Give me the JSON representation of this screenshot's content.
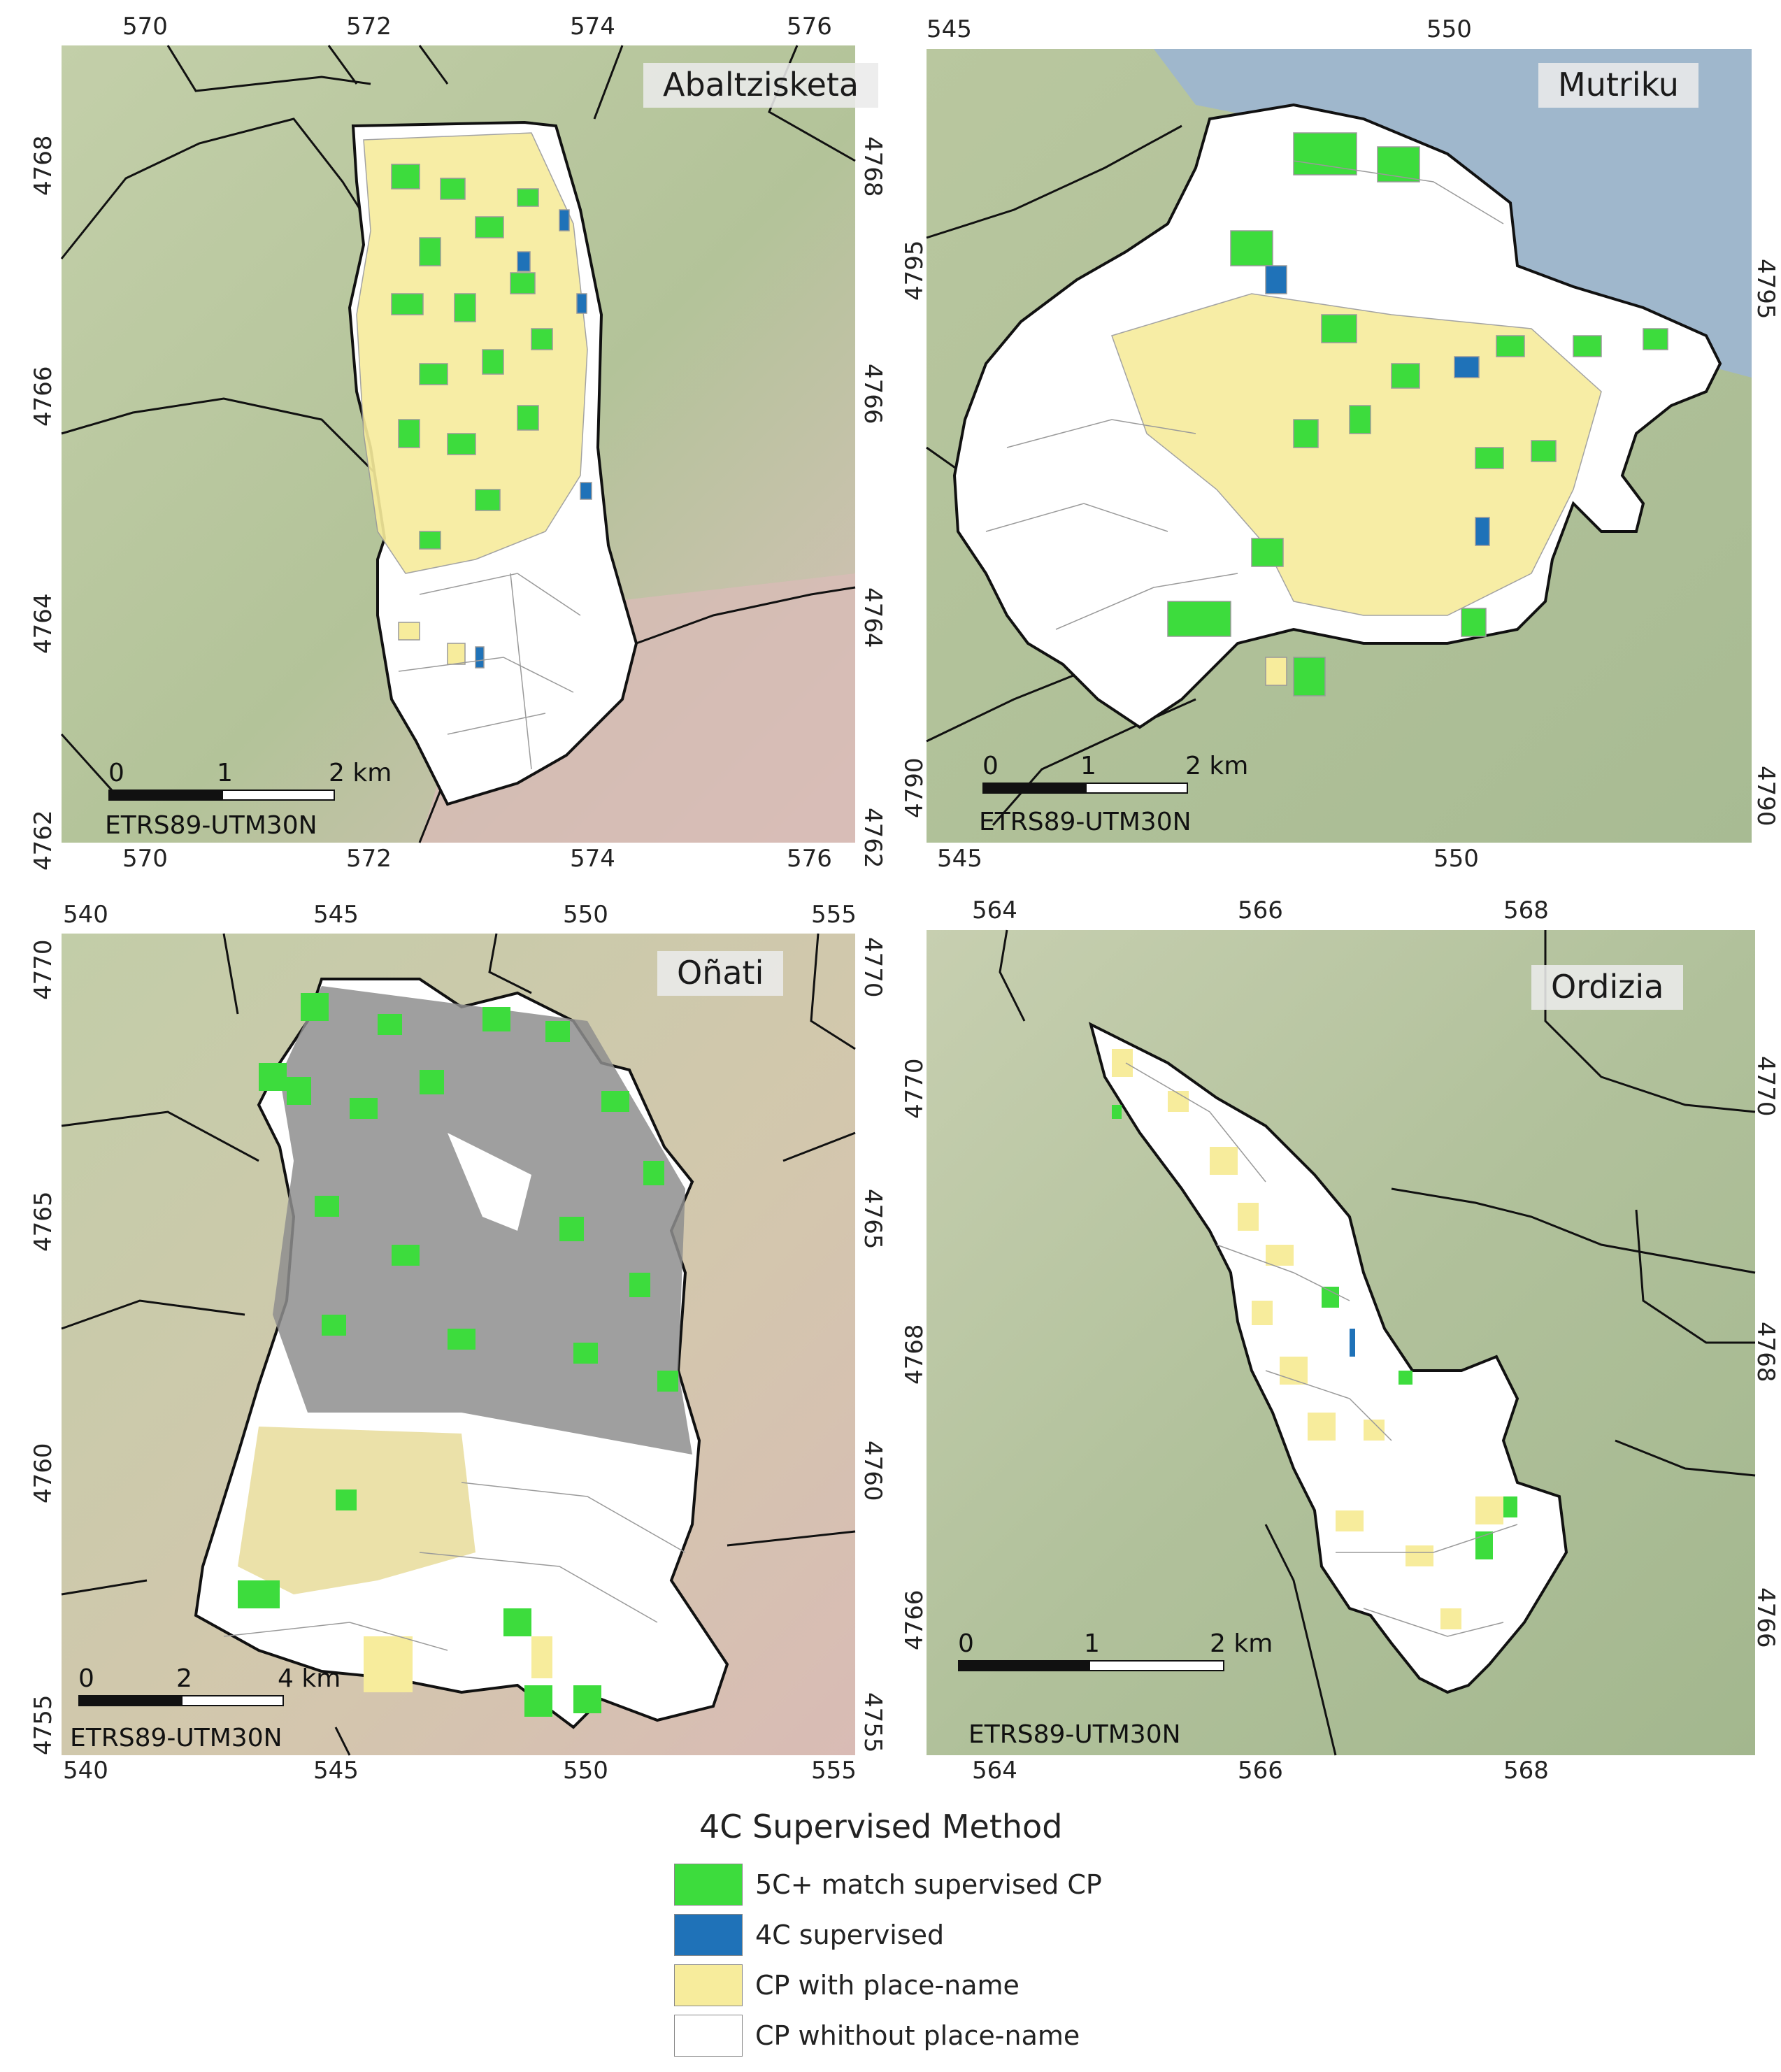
{
  "colors": {
    "match": "#3ddc3d",
    "supervised": "#1f72b8",
    "placename": "#f7ec9c",
    "noplacename": "#ffffff",
    "boundary": "#111111",
    "parcel": "#9a9a9a",
    "terrain": "#a9bd93",
    "terrain_light": "#c5cfae",
    "terrain_pink": "#d6bcb6",
    "sea": "#9fb7cc"
  },
  "panels": {
    "abaltzisketa": {
      "name": "Abaltzisketa",
      "ticks_top": [
        "570",
        "572",
        "574",
        "576"
      ],
      "ticks_bottom": [
        "570",
        "572",
        "574",
        "576"
      ],
      "ticks_left": [
        "4768",
        "4766",
        "4764",
        "4762"
      ],
      "ticks_right": [
        "4768",
        "4766",
        "4764",
        "4762"
      ],
      "scale": [
        "0",
        "1",
        "2 km"
      ],
      "crs": "ETRS89-UTM30N"
    },
    "mutriku": {
      "name": "Mutriku",
      "ticks_top": [
        "545",
        "550"
      ],
      "ticks_bottom": [
        "545",
        "550"
      ],
      "ticks_left": [
        "4795",
        "4790"
      ],
      "ticks_right": [
        "4795",
        "4790"
      ],
      "scale": [
        "0",
        "1",
        "2 km"
      ],
      "crs": "ETRS89-UTM30N"
    },
    "onati": {
      "name": "Oñati",
      "ticks_top": [
        "540",
        "545",
        "550",
        "555"
      ],
      "ticks_bottom": [
        "540",
        "545",
        "550",
        "555"
      ],
      "ticks_left": [
        "4770",
        "4765",
        "4760",
        "4755"
      ],
      "ticks_right": [
        "4770",
        "4765",
        "4760",
        "4755"
      ],
      "scale": [
        "0",
        "2",
        "4 km"
      ],
      "crs": "ETRS89-UTM30N"
    },
    "ordizia": {
      "name": "Ordizia",
      "ticks_top": [
        "564",
        "566",
        "568"
      ],
      "ticks_bottom": [
        "564",
        "566",
        "568"
      ],
      "ticks_left": [
        "4770",
        "4768",
        "4766"
      ],
      "ticks_right": [
        "4770",
        "4768",
        "4766"
      ],
      "scale": [
        "0",
        "1",
        "2 km"
      ],
      "crs": "ETRS89-UTM30N"
    }
  },
  "legend": {
    "title": "4C Supervised Method",
    "items": [
      {
        "label": "5C+ match supervised CP",
        "color": "#3ddc3d"
      },
      {
        "label": "4C supervised",
        "color": "#1f72b8"
      },
      {
        "label": "CP with place-name",
        "color": "#f7ec9c"
      },
      {
        "label": "CP whithout place-name",
        "color": "#ffffff"
      }
    ]
  }
}
